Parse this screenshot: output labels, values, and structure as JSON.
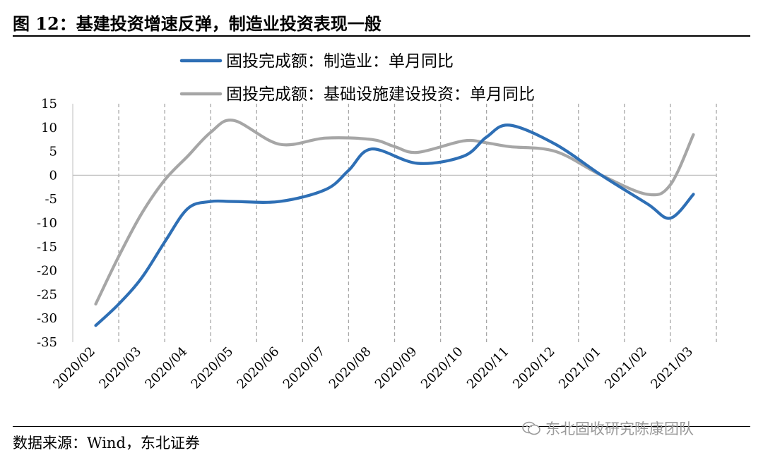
{
  "header": {
    "title": "图 12：基建投资增速反弹，制造业投资表现一般"
  },
  "footer": {
    "source": "数据来源：Wind，东北证券",
    "watermark": "东北固收研究陈康团队"
  },
  "colors": {
    "series_1": "#2E6FB5",
    "series_2": "#A6A6A6",
    "grid": "#A6A6A6",
    "axis": "#BFBFBF"
  },
  "chart_data": {
    "type": "line",
    "categories": [
      "2020/02",
      "2020/03",
      "2020/04",
      "2020/05",
      "2020/06",
      "2020/07",
      "2020/08",
      "2020/09",
      "2020/10",
      "2020/11",
      "2020/12",
      "2021/01",
      "2021/02",
      "2021/03"
    ],
    "y_ticks": [
      "15",
      "10",
      "5",
      "0",
      "-5",
      "-10",
      "-15",
      "-20",
      "-25",
      "-30",
      "-35"
    ],
    "ylim": [
      -35,
      15
    ],
    "y_step": 5,
    "grid": "vertical-dashed",
    "legend_position": "top",
    "series": [
      {
        "name": "固投完成额：制造业：单月同比",
        "x": [
          0,
          0.5,
          1,
          1.5,
          2,
          2.5,
          3,
          4,
          5,
          5.5,
          6,
          7,
          8,
          8.5,
          9,
          10,
          11,
          12,
          12.5,
          13
        ],
        "values": [
          -31.5,
          -27,
          -21.5,
          -14,
          -7,
          -5.5,
          -5.5,
          -5.5,
          -3,
          1,
          5.5,
          2.5,
          4,
          8,
          10.5,
          6.5,
          0,
          -6,
          -9,
          -4
        ]
      },
      {
        "name": "固投完成额：基础设施建设投资：单月同比",
        "x": [
          0,
          0.5,
          1,
          1.5,
          2,
          2.5,
          3,
          4,
          5,
          6,
          6.5,
          7,
          8,
          8.5,
          9,
          10,
          11,
          12,
          12.5,
          13
        ],
        "values": [
          -27,
          -17,
          -8,
          -1,
          4,
          9,
          11.5,
          6.5,
          7.8,
          7.5,
          6,
          4.8,
          7.2,
          6.8,
          6,
          5,
          0,
          -4,
          -2,
          8.5
        ]
      }
    ]
  }
}
